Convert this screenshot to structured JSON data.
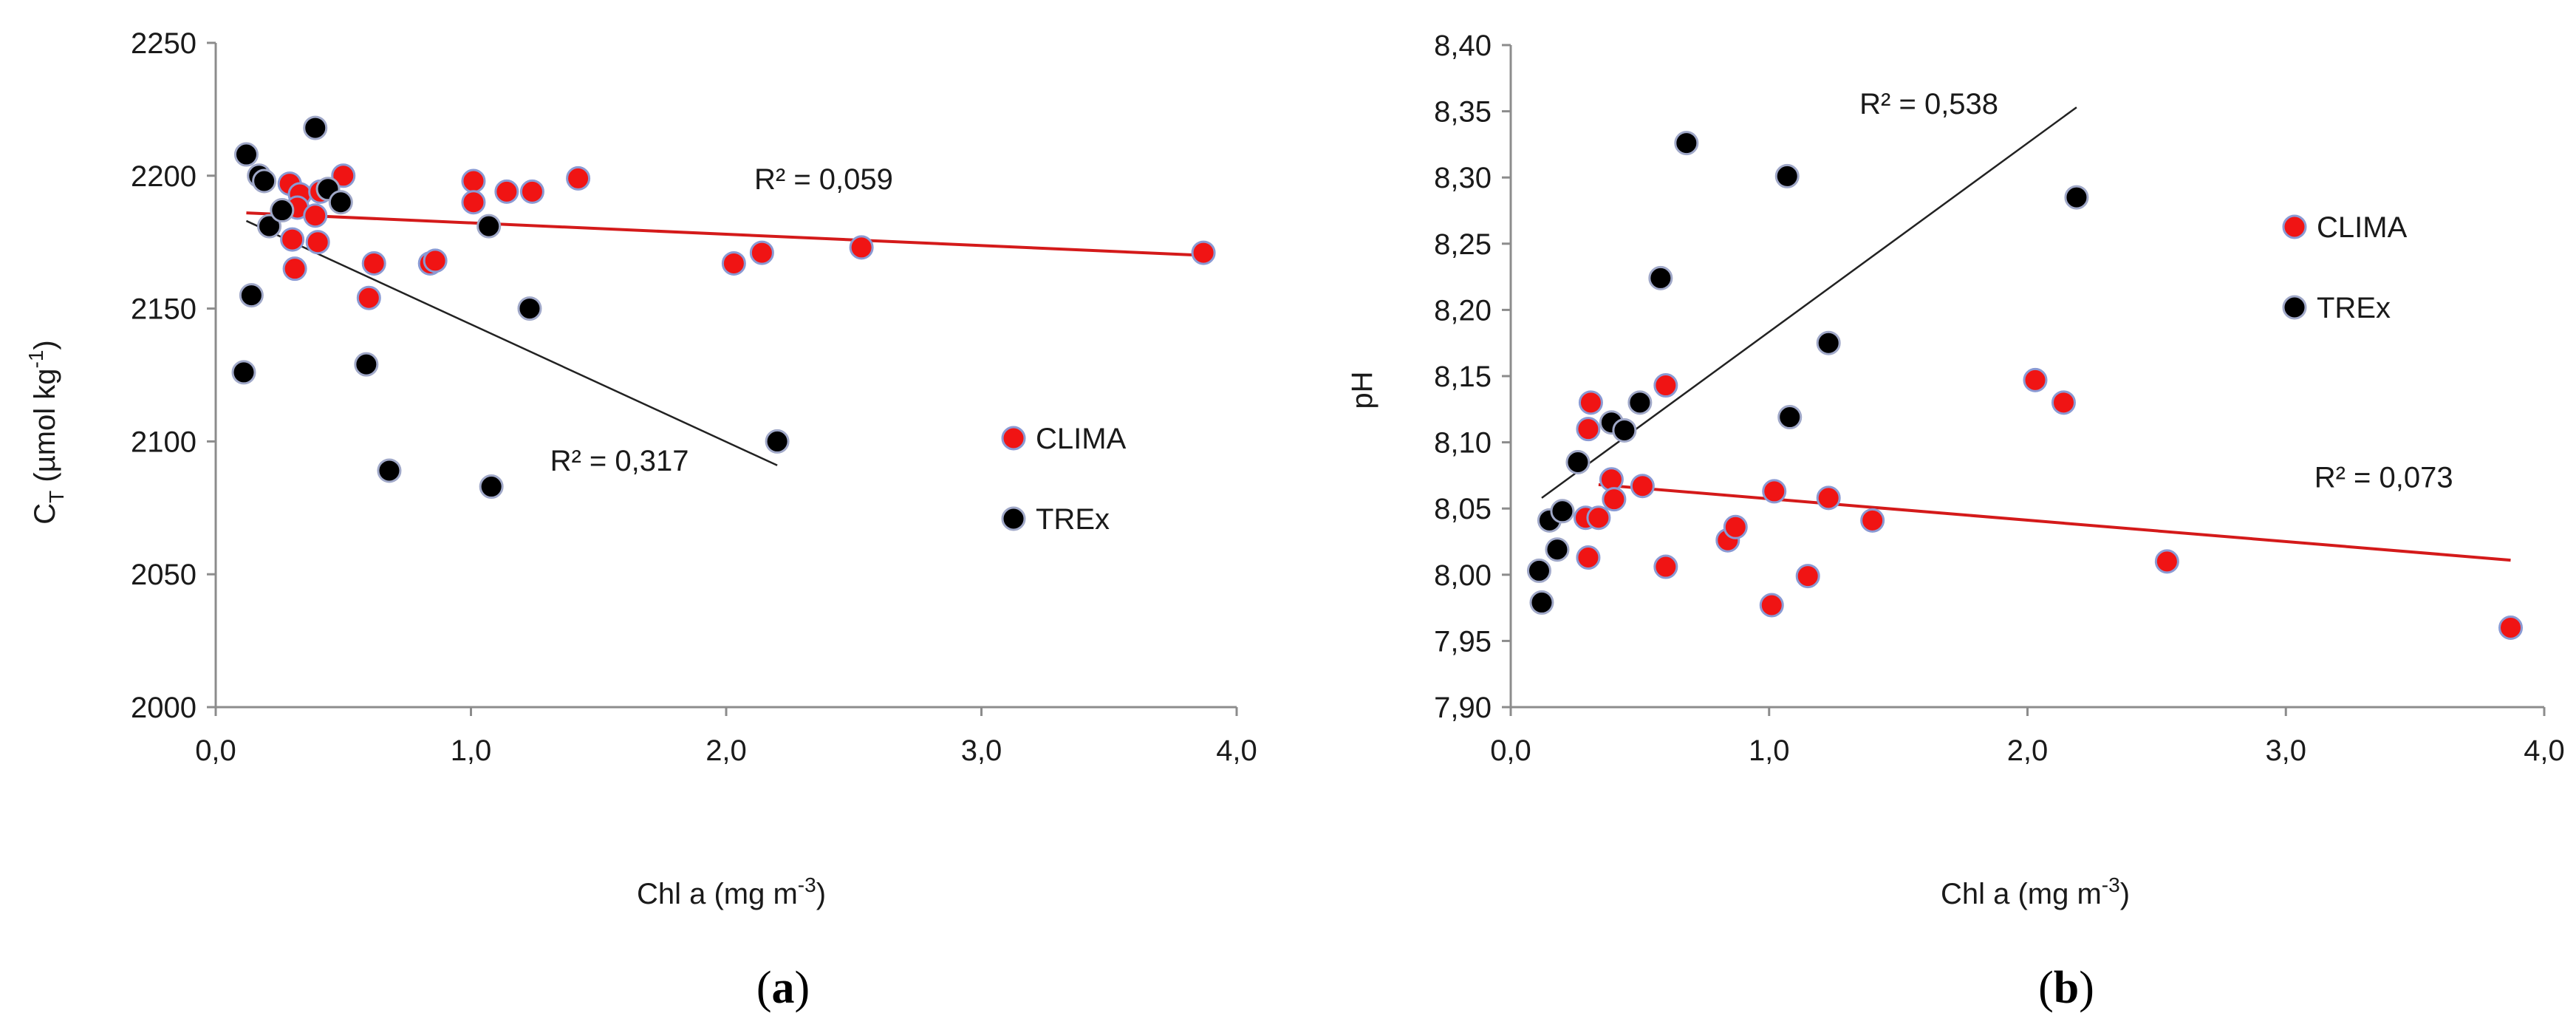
{
  "colors": {
    "clima_fill": "#f01414",
    "clima_stroke": "#8a9ad4",
    "trex_fill": "#000000",
    "trex_stroke": "#a0a8c8",
    "clima_trend": "#d41a1a",
    "trex_trend": "#222222",
    "axis": "#8c8c8c"
  },
  "chart_data": [
    {
      "type": "scatter",
      "panel": "a",
      "caption_open": "(",
      "caption_letter": "a",
      "caption_close": ")",
      "xlabel_main": "Chl a (mg m",
      "xlabel_sup": "-3",
      "xlabel_end": ")",
      "ylabel_main": "C",
      "ylabel_sub": "T",
      "ylabel_mid": " (µmol kg",
      "ylabel_sup": "-1",
      "ylabel_end": ")",
      "xlim": [
        0,
        4
      ],
      "ylim": [
        2000,
        2250
      ],
      "xticks": [
        0,
        1,
        2,
        3,
        4
      ],
      "xtick_labels": [
        "0,0",
        "1,0",
        "2,0",
        "3,0",
        "4,0"
      ],
      "yticks": [
        2000,
        2050,
        2100,
        2150,
        2200,
        2250
      ],
      "ytick_labels": [
        "2000",
        "2050",
        "2100",
        "2150",
        "2200",
        "2250"
      ],
      "grid": false,
      "legend": [
        {
          "name": "CLIMA",
          "series": "CLIMA"
        },
        {
          "name": "TREx",
          "series": "TREx"
        }
      ],
      "legend_position": "right",
      "series": [
        {
          "name": "CLIMA",
          "points": [
            [
              0.29,
              2197
            ],
            [
              0.3,
              2176
            ],
            [
              0.31,
              2165
            ],
            [
              0.33,
              2193
            ],
            [
              0.32,
              2188
            ],
            [
              0.39,
              2185
            ],
            [
              0.4,
              2175
            ],
            [
              0.41,
              2194
            ],
            [
              0.5,
              2200
            ],
            [
              0.6,
              2154
            ],
            [
              0.62,
              2167
            ],
            [
              0.84,
              2167
            ],
            [
              0.86,
              2168
            ],
            [
              1.01,
              2198
            ],
            [
              1.01,
              2190
            ],
            [
              1.14,
              2194
            ],
            [
              1.24,
              2194
            ],
            [
              1.42,
              2199
            ],
            [
              2.03,
              2167
            ],
            [
              2.14,
              2171
            ],
            [
              2.53,
              2173
            ],
            [
              3.87,
              2171
            ]
          ]
        },
        {
          "name": "TREx",
          "points": [
            [
              0.11,
              2126
            ],
            [
              0.12,
              2208
            ],
            [
              0.14,
              2155
            ],
            [
              0.17,
              2200
            ],
            [
              0.19,
              2198
            ],
            [
              0.21,
              2181
            ],
            [
              0.26,
              2187
            ],
            [
              0.39,
              2218
            ],
            [
              0.44,
              2195
            ],
            [
              0.49,
              2190
            ],
            [
              0.59,
              2129
            ],
            [
              0.68,
              2089
            ],
            [
              1.07,
              2181
            ],
            [
              1.08,
              2083
            ],
            [
              1.23,
              2150
            ],
            [
              2.2,
              2100
            ]
          ]
        }
      ],
      "trendlines": [
        {
          "series": "CLIMA",
          "from": [
            0.12,
            2186
          ],
          "to": [
            3.87,
            2170
          ]
        },
        {
          "series": "TREx",
          "from": [
            0.12,
            2183
          ],
          "to": [
            2.2,
            2091
          ]
        }
      ],
      "annotations": [
        {
          "text": "R² = 0,059",
          "anchor": [
            2.11,
            2195
          ]
        },
        {
          "text": "R² = 0,317",
          "anchor": [
            1.31,
            2089
          ]
        }
      ]
    },
    {
      "type": "scatter",
      "panel": "b",
      "caption_open": "(",
      "caption_letter": "b",
      "caption_close": ")",
      "xlabel_main": "Chl a (mg m",
      "xlabel_sup": "-3",
      "xlabel_end": ")",
      "ylabel_main": "pH",
      "xlim": [
        0,
        4
      ],
      "ylim": [
        7.9,
        8.4
      ],
      "xticks": [
        0,
        1,
        2,
        3,
        4
      ],
      "xtick_labels": [
        "0,0",
        "1,0",
        "2,0",
        "3,0",
        "4,0"
      ],
      "yticks": [
        7.9,
        7.95,
        8.0,
        8.05,
        8.1,
        8.15,
        8.2,
        8.25,
        8.3,
        8.35,
        8.4
      ],
      "ytick_labels": [
        "7,90",
        "7,95",
        "8,00",
        "8,05",
        "8,10",
        "8,15",
        "8,20",
        "8,25",
        "8,30",
        "8,35",
        "8,40"
      ],
      "grid": false,
      "legend": [
        {
          "name": "CLIMA",
          "series": "CLIMA"
        },
        {
          "name": "TREx",
          "series": "TREx"
        }
      ],
      "legend_position": "right",
      "series": [
        {
          "name": "CLIMA",
          "points": [
            [
              0.29,
              8.043
            ],
            [
              0.3,
              8.11
            ],
            [
              0.3,
              8.013
            ],
            [
              0.31,
              8.13
            ],
            [
              0.34,
              8.043
            ],
            [
              0.39,
              8.072
            ],
            [
              0.4,
              8.057
            ],
            [
              0.51,
              8.067
            ],
            [
              0.6,
              8.143
            ],
            [
              0.6,
              8.006
            ],
            [
              0.84,
              8.026
            ],
            [
              0.87,
              8.036
            ],
            [
              1.01,
              7.977
            ],
            [
              1.02,
              8.063
            ],
            [
              1.15,
              7.999
            ],
            [
              1.23,
              8.058
            ],
            [
              1.4,
              8.041
            ],
            [
              2.03,
              8.147
            ],
            [
              2.14,
              8.13
            ],
            [
              2.54,
              8.01
            ],
            [
              3.87,
              7.96
            ]
          ]
        },
        {
          "name": "TREx",
          "points": [
            [
              0.11,
              8.003
            ],
            [
              0.12,
              7.979
            ],
            [
              0.15,
              8.041
            ],
            [
              0.18,
              8.019
            ],
            [
              0.2,
              8.048
            ],
            [
              0.26,
              8.085
            ],
            [
              0.39,
              8.115
            ],
            [
              0.44,
              8.109
            ],
            [
              0.5,
              8.13
            ],
            [
              0.58,
              8.224
            ],
            [
              0.68,
              8.326
            ],
            [
              1.07,
              8.301
            ],
            [
              1.08,
              8.119
            ],
            [
              1.23,
              8.175
            ],
            [
              2.19,
              8.285
            ]
          ]
        }
      ],
      "trendlines": [
        {
          "series": "CLIMA",
          "from": [
            0.34,
            8.068
          ],
          "to": [
            3.87,
            8.011
          ]
        },
        {
          "series": "TREx",
          "from": [
            0.12,
            8.058
          ],
          "to": [
            2.19,
            8.353
          ]
        }
      ],
      "annotations": [
        {
          "text": "R² = 0,538",
          "anchor": [
            1.35,
            8.348
          ]
        },
        {
          "text": "R² = 0,073",
          "anchor": [
            3.11,
            8.066
          ]
        }
      ]
    }
  ]
}
